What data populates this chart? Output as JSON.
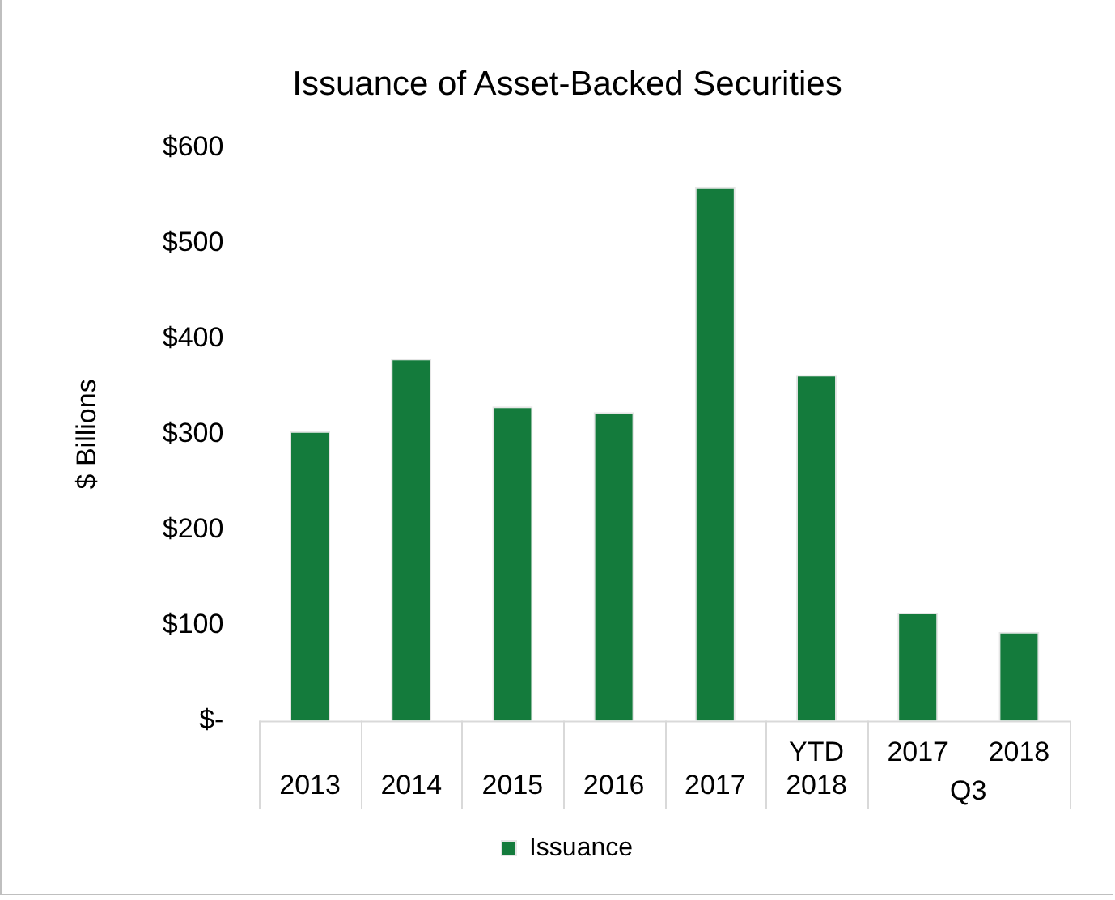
{
  "chart_data": {
    "type": "bar",
    "title": "Issuance of Asset-Backed Securities",
    "ylabel": "$ Billions",
    "categories": [
      "2013",
      "2014",
      "2015",
      "2016",
      "2017",
      "YTD 2018",
      "2017",
      "2018"
    ],
    "series": [
      {
        "name": "Issuance",
        "color": "#147b3c",
        "values": [
          303,
          379,
          329,
          323,
          559,
          362,
          113,
          93
        ]
      }
    ],
    "annotations": [
      "Q3"
    ],
    "ylim": [
      0,
      600
    ],
    "yticks": [
      {
        "value": 0,
        "label": "$-"
      },
      {
        "value": 100,
        "label": "$100"
      },
      {
        "value": 200,
        "label": "$200"
      },
      {
        "value": 300,
        "label": "$300"
      },
      {
        "value": 400,
        "label": "$400"
      },
      {
        "value": 500,
        "label": "$500"
      },
      {
        "value": 600,
        "label": "$600"
      }
    ],
    "grid": false,
    "legend": "bottom"
  }
}
